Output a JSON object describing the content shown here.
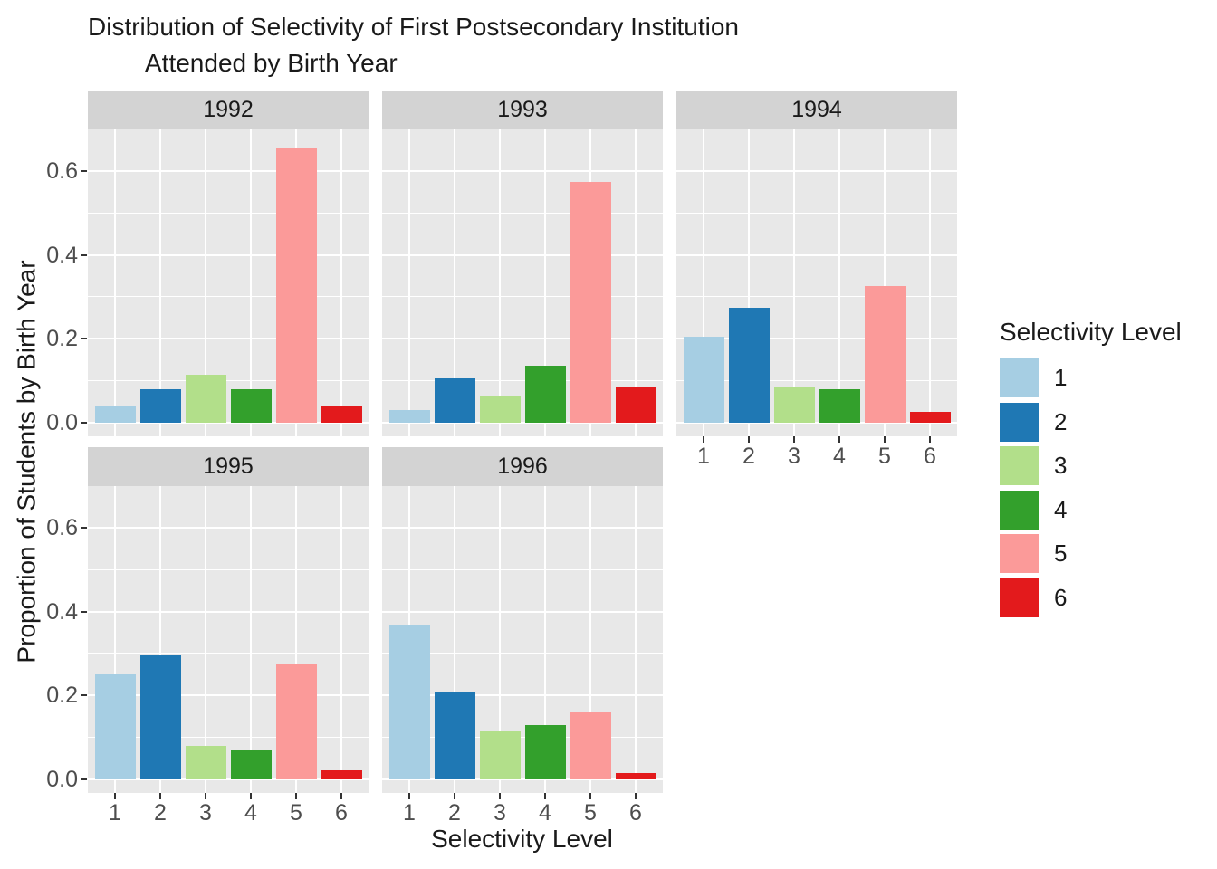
{
  "title": {
    "line1": "Distribution of Selectivity of First Postsecondary Institution",
    "line2": "Attended by Birth Year"
  },
  "axes": {
    "x_label": "Selectivity Level",
    "y_label": "Proportion of Students by Birth Year",
    "y_tick_labels": [
      "0.0",
      "0.2",
      "0.4",
      "0.6"
    ],
    "x_tick_labels": [
      "1",
      "2",
      "3",
      "4",
      "5",
      "6"
    ]
  },
  "legend": {
    "title": "Selectivity Level",
    "items": [
      {
        "label": "1",
        "color": "#A6CEE3"
      },
      {
        "label": "2",
        "color": "#1F78B4"
      },
      {
        "label": "3",
        "color": "#B2DF8A"
      },
      {
        "label": "4",
        "color": "#33A02C"
      },
      {
        "label": "5",
        "color": "#FB9A99"
      },
      {
        "label": "6",
        "color": "#E31A1C"
      }
    ]
  },
  "chart_data": {
    "type": "bar",
    "title": "Distribution of Selectivity of First Postsecondary Institution Attended by Birth Year",
    "xlabel": "Selectivity Level",
    "ylabel": "Proportion of Students by Birth Year",
    "facet_variable": "Birth Year",
    "categories": [
      "1",
      "2",
      "3",
      "4",
      "5",
      "6"
    ],
    "category_colors": [
      "#A6CEE3",
      "#1F78B4",
      "#B2DF8A",
      "#33A02C",
      "#FB9A99",
      "#E31A1C"
    ],
    "facets": [
      {
        "label": "1992",
        "values": [
          0.04,
          0.08,
          0.115,
          0.08,
          0.655,
          0.04
        ]
      },
      {
        "label": "1993",
        "values": [
          0.03,
          0.105,
          0.065,
          0.135,
          0.575,
          0.085
        ]
      },
      {
        "label": "1994",
        "values": [
          0.205,
          0.275,
          0.085,
          0.08,
          0.325,
          0.025
        ]
      },
      {
        "label": "1995",
        "values": [
          0.25,
          0.295,
          0.08,
          0.07,
          0.275,
          0.02
        ]
      },
      {
        "label": "1996",
        "values": [
          0.37,
          0.21,
          0.115,
          0.13,
          0.16,
          0.015
        ]
      }
    ],
    "y_major_ticks": [
      0.0,
      0.2,
      0.4,
      0.6
    ],
    "y_minor_ticks": [
      0.1,
      0.3,
      0.5
    ],
    "ylim": [
      0,
      0.7
    ],
    "grid": "white major+minor on gray panel",
    "legend_title": "Selectivity Level",
    "legend_position": "right"
  },
  "colors": {
    "panel_background": "#E8E8E8",
    "strip_background": "#D3D3D3",
    "gridline": "#FFFFFF",
    "tick_mark": "#333333",
    "axis_text": "#4D4D4D",
    "text": "#1A1A1A",
    "background": "#FFFFFF"
  }
}
